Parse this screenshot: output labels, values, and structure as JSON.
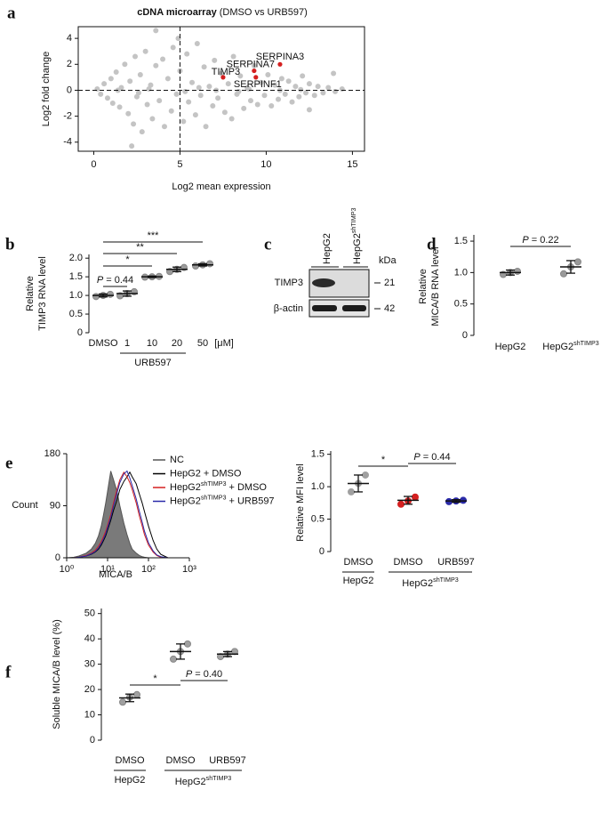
{
  "chart_data": [
    {
      "type": "scatter",
      "panel": "a",
      "title": [
        {
          "text": "cDNA microarray",
          "bold": true
        },
        {
          "text": " (DMSO vs URB597)"
        }
      ],
      "x_label": "Log2 mean expression",
      "y_label": "Log2 fold change",
      "x": [
        0.2,
        0.4,
        0.6,
        0.8,
        1.0,
        1.1,
        1.3,
        1.5,
        1.6,
        1.8,
        2.0,
        2.1,
        2.3,
        2.4,
        2.5,
        2.7,
        2.8,
        3.0,
        3.1,
        3.3,
        3.4,
        3.6,
        3.6,
        3.8,
        4.0,
        4.1,
        4.3,
        4.5,
        4.6,
        4.8,
        5.0,
        5.2,
        5.4,
        5.5,
        5.7,
        5.9,
        6.0,
        6.2,
        6.4,
        6.5,
        6.7,
        6.9,
        7.0,
        7.2,
        7.4,
        7.6,
        7.8,
        8.0,
        8.1,
        8.3,
        8.5,
        8.7,
        8.9,
        9.1,
        9.3,
        9.5,
        9.7,
        9.9,
        10.1,
        10.3,
        10.5,
        10.7,
        10.9,
        11.1,
        11.3,
        11.5,
        11.7,
        11.9,
        12.1,
        12.3,
        12.5,
        12.8,
        13.0,
        13.3,
        13.6,
        14.0,
        14.4,
        4.9,
        2.2,
        3.2,
        5.3,
        7.1,
        9.0,
        2.6,
        6.1,
        8.4,
        10.8,
        12.0,
        1.4,
        13.9,
        12.5
      ],
      "values": [
        0.1,
        -0.3,
        0.5,
        -0.6,
        0.9,
        -1.0,
        1.4,
        -1.3,
        0.2,
        2.0,
        -1.8,
        0.7,
        -2.6,
        2.6,
        -0.5,
        1.2,
        -3.2,
        3.0,
        -1.1,
        0.4,
        -2.2,
        1.9,
        4.6,
        -0.8,
        2.4,
        -2.8,
        0.9,
        -1.6,
        3.3,
        -0.3,
        1.5,
        -2.4,
        2.8,
        -0.9,
        0.6,
        -1.9,
        3.6,
        -0.4,
        1.8,
        -2.8,
        0.3,
        -1.2,
        2.3,
        -0.6,
        1.3,
        -1.7,
        0.5,
        -2.2,
        2.6,
        -0.3,
        1.1,
        -1.4,
        0.2,
        -0.8,
        1.9,
        -1.1,
        0.6,
        -0.4,
        1.2,
        -1.2,
        0.4,
        -0.7,
        0.9,
        -0.3,
        0.7,
        -0.9,
        0.3,
        -0.5,
        1.1,
        -0.2,
        0.5,
        -0.4,
        0.3,
        -0.2,
        0.2,
        -0.1,
        0.1,
        4.0,
        -4.3,
        0.1,
        -0.1,
        0.0,
        0.1,
        -0.2,
        0.2,
        -0.1,
        0.0,
        0.05,
        0.0,
        1.3,
        -1.5
      ],
      "color": "#c4c4c4",
      "highlights": {
        "labels": [
          "SERPINA3",
          "SERPINA7",
          "TIMP3",
          "SERPINF1"
        ],
        "x": [
          10.8,
          9.3,
          7.5,
          9.4
        ],
        "values": [
          2.0,
          1.5,
          1.0,
          1.0
        ],
        "color": "#d42020"
      },
      "ref_x": 5,
      "ref_y": 0,
      "xlim": [
        -0.9,
        15.7
      ],
      "ylim": [
        -4.7,
        4.9
      ],
      "xticks": [
        0,
        5,
        10,
        15
      ],
      "yticks": [
        -4,
        -2,
        0,
        2,
        4
      ]
    },
    {
      "type": "dotplot",
      "panel": "b",
      "y_label": [
        "Relative",
        "TIMP3 RNA level"
      ],
      "categories": [
        "DMSO",
        "1",
        "10",
        "20",
        "50"
      ],
      "unit": "[μM]",
      "groups": [
        "URB597"
      ],
      "points": [
        [
          0.97,
          1.0,
          1.03
        ],
        [
          0.99,
          1.05,
          1.1
        ],
        [
          1.49,
          1.5,
          1.51
        ],
        [
          1.64,
          1.7,
          1.75
        ],
        [
          1.79,
          1.82,
          1.85
        ]
      ],
      "means": [
        1.0,
        1.05,
        1.5,
        1.7,
        1.82
      ],
      "sd": [
        0.04,
        0.07,
        0.02,
        0.06,
        0.03
      ],
      "color": "#9a9a9a",
      "comparisons": [
        "***",
        "**",
        "*",
        [
          {
            "text": "P",
            "italic": true
          },
          {
            "text": " = 0.44"
          }
        ]
      ],
      "ylim": [
        0,
        2.1
      ],
      "yticks": [
        0,
        0.5,
        {
          "value": 1,
          "label": "1.0"
        },
        1.5,
        {
          "value": 2,
          "label": "2.0"
        }
      ]
    },
    {
      "type": "dotplot",
      "panel": "d",
      "y_label": [
        "Relative",
        "MICA/B RNA level"
      ],
      "categories": [
        "HepG2",
        [
          {
            "text": "HepG2"
          },
          {
            "text": "shTIMP3",
            "sup": true
          }
        ]
      ],
      "points": [
        [
          0.97,
          1.0,
          1.02
        ],
        [
          0.98,
          1.09,
          1.17
        ]
      ],
      "means": [
        1.0,
        1.09
      ],
      "sd": [
        0.04,
        0.1
      ],
      "color": "#9a9a9a",
      "comparisons": [
        [
          {
            "text": "P",
            "italic": true
          },
          {
            "text": " = 0.22"
          }
        ]
      ],
      "ylim": [
        0,
        1.6
      ],
      "yticks": [
        0,
        0.5,
        {
          "value": 1,
          "label": "1.0"
        },
        1.5
      ]
    },
    {
      "type": "line",
      "panel": "e",
      "x_label": "MICA/B",
      "y_label": "Count",
      "xscale": "log",
      "x": [
        1,
        1.5,
        2,
        3,
        4,
        5,
        6,
        7,
        8,
        9,
        10,
        12,
        14,
        17,
        20,
        25,
        30,
        35,
        40,
        50,
        60,
        70,
        80,
        100,
        130,
        160,
        200,
        300
      ],
      "series": [
        {
          "name": "NC",
          "color": "#555555",
          "fill": "#7a7a7a",
          "values": [
            0,
            1,
            3,
            8,
            15,
            25,
            38,
            55,
            75,
            95,
            115,
            150,
            135,
            115,
            90,
            60,
            40,
            25,
            15,
            8,
            4,
            2,
            1,
            0,
            0,
            0,
            0,
            0
          ]
        },
        {
          "name": "HepG2 + DMSO",
          "color": "#000000",
          "values": [
            0,
            0,
            1,
            3,
            6,
            10,
            15,
            22,
            30,
            38,
            48,
            65,
            82,
            100,
            118,
            132,
            140,
            148,
            140,
            128,
            110,
            95,
            80,
            55,
            30,
            15,
            6,
            0
          ]
        },
        {
          "name": [
            {
              "text": "HepG2"
            },
            {
              "text": "shTIMP3",
              "sup": true
            },
            {
              "text": " + DMSO"
            }
          ],
          "color": "#d42020",
          "values": [
            0,
            0,
            1,
            4,
            8,
            13,
            20,
            28,
            37,
            46,
            56,
            75,
            95,
            118,
            135,
            148,
            140,
            130,
            118,
            95,
            72,
            55,
            40,
            22,
            10,
            4,
            1,
            0
          ]
        },
        {
          "name": [
            {
              "text": "HepG2"
            },
            {
              "text": "shTIMP3",
              "sup": true
            },
            {
              "text": " + URB597"
            }
          ],
          "color": "#2a2aa8",
          "values": [
            0,
            0,
            1,
            3,
            7,
            11,
            17,
            25,
            33,
            42,
            52,
            70,
            90,
            112,
            130,
            145,
            150,
            138,
            125,
            102,
            80,
            62,
            46,
            26,
            12,
            5,
            2,
            0
          ]
        }
      ],
      "xlim": [
        1,
        1000
      ],
      "xticks": [
        {
          "value": 1,
          "label": "10⁰"
        },
        {
          "value": 10,
          "label": "10¹"
        },
        {
          "value": 100,
          "label": "10²"
        },
        {
          "value": 1000,
          "label": "10³"
        }
      ],
      "ylim": [
        0,
        180
      ],
      "yticks": [
        0,
        90,
        180
      ]
    },
    {
      "type": "dotplot",
      "y_label": "Relative MFI level",
      "categories": [
        "DMSO",
        "DMSO",
        "URB597"
      ],
      "groups": [
        "HepG2",
        [
          {
            "text": "HepG2"
          },
          {
            "text": "shTIMP3",
            "sup": true
          }
        ]
      ],
      "points": [
        [
          0.92,
          1.05,
          1.18
        ],
        [
          0.73,
          0.78,
          0.84
        ],
        [
          0.77,
          0.78,
          0.79
        ]
      ],
      "means": [
        1.05,
        0.79,
        0.78
      ],
      "sd": [
        0.13,
        0.06,
        0.02
      ],
      "colors": [
        "#a0a0a0",
        "#d42020",
        "#2a2aa8"
      ],
      "comparisons": [
        "*",
        [
          {
            "text": "P",
            "italic": true
          },
          {
            "text": " = 0.44"
          }
        ]
      ],
      "ylim": [
        0,
        1.55
      ],
      "yticks": [
        0,
        0.5,
        {
          "value": 1,
          "label": "1.0"
        },
        1.5
      ]
    },
    {
      "type": "dotplot",
      "panel": "f",
      "y_label": "Soluble MICA/B level (%)",
      "categories": [
        "DMSO",
        "DMSO",
        "URB597"
      ],
      "groups": [
        "HepG2",
        [
          {
            "text": "HepG2"
          },
          {
            "text": "shTIMP3",
            "sup": true
          }
        ]
      ],
      "points": [
        [
          15,
          17,
          18
        ],
        [
          32,
          35,
          38
        ],
        [
          33,
          34,
          35
        ]
      ],
      "means": [
        16.7,
        35,
        34
      ],
      "sd": [
        1.5,
        3,
        1
      ],
      "color": "#a0a0a0",
      "comparisons": [
        "*",
        [
          {
            "text": "P",
            "italic": true
          },
          {
            "text": " = 0.40"
          }
        ]
      ],
      "ylim": [
        0,
        52
      ],
      "yticks": [
        0,
        10,
        20,
        30,
        40,
        50
      ]
    }
  ],
  "blot": {
    "panel": "c",
    "lanes": [
      "HepG2",
      [
        {
          "text": "HepG2"
        },
        {
          "text": "shTIMP3",
          "sup": true
        }
      ]
    ],
    "kda": "kDa",
    "rows": [
      {
        "label": "TIMP3",
        "kda": "21"
      },
      {
        "label": "β-actin",
        "kda": "42"
      }
    ]
  }
}
